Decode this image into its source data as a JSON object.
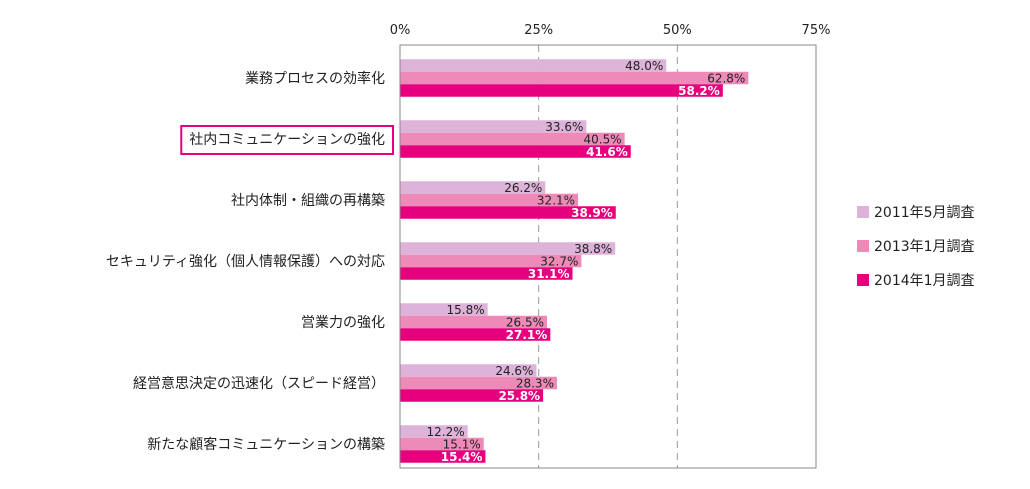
{
  "chart_data": {
    "type": "bar",
    "orientation": "horizontal",
    "categories": [
      "業務プロセスの効率化",
      "社内コミュニケーションの強化",
      "社内体制・組織の再構築",
      "セキュリティ強化（個人情報保護）への対応",
      "営業力の強化",
      "経営意思決定の迅速化（スピード経営）",
      "新たな顧客コミュニケーションの構築"
    ],
    "series": [
      {
        "name": "2011年5月調査",
        "values": [
          48.0,
          33.6,
          26.2,
          38.8,
          15.8,
          24.6,
          12.2
        ],
        "color": "#ddb3d9",
        "labels": [
          "48.0%",
          "33.6%",
          "26.2%",
          "38.8%",
          "15.8%",
          "24.6%",
          "12.2%"
        ]
      },
      {
        "name": "2013年1月調査",
        "values": [
          62.8,
          40.5,
          32.1,
          32.7,
          26.5,
          28.3,
          15.1
        ],
        "color": "#ee8ab8",
        "labels": [
          "62.8%",
          "40.5%",
          "32.1%",
          "32.7%",
          "26.5%",
          "28.3%",
          "15.1%"
        ]
      },
      {
        "name": "2014年1月調査",
        "values": [
          58.2,
          41.6,
          38.9,
          31.1,
          27.1,
          25.8,
          15.4
        ],
        "color": "#e6007e",
        "labels": [
          "58.2%",
          "41.6%",
          "38.9%",
          "31.1%",
          "27.1%",
          "25.8%",
          "15.4%"
        ]
      }
    ],
    "xlim": [
      0,
      75
    ],
    "ticks": [
      0,
      25,
      50,
      75
    ],
    "tick_labels": [
      "0%",
      "25%",
      "50%",
      "75%"
    ],
    "highlighted_category_index": 1,
    "highlight_color": "#e6007e",
    "legend_position": "right"
  }
}
